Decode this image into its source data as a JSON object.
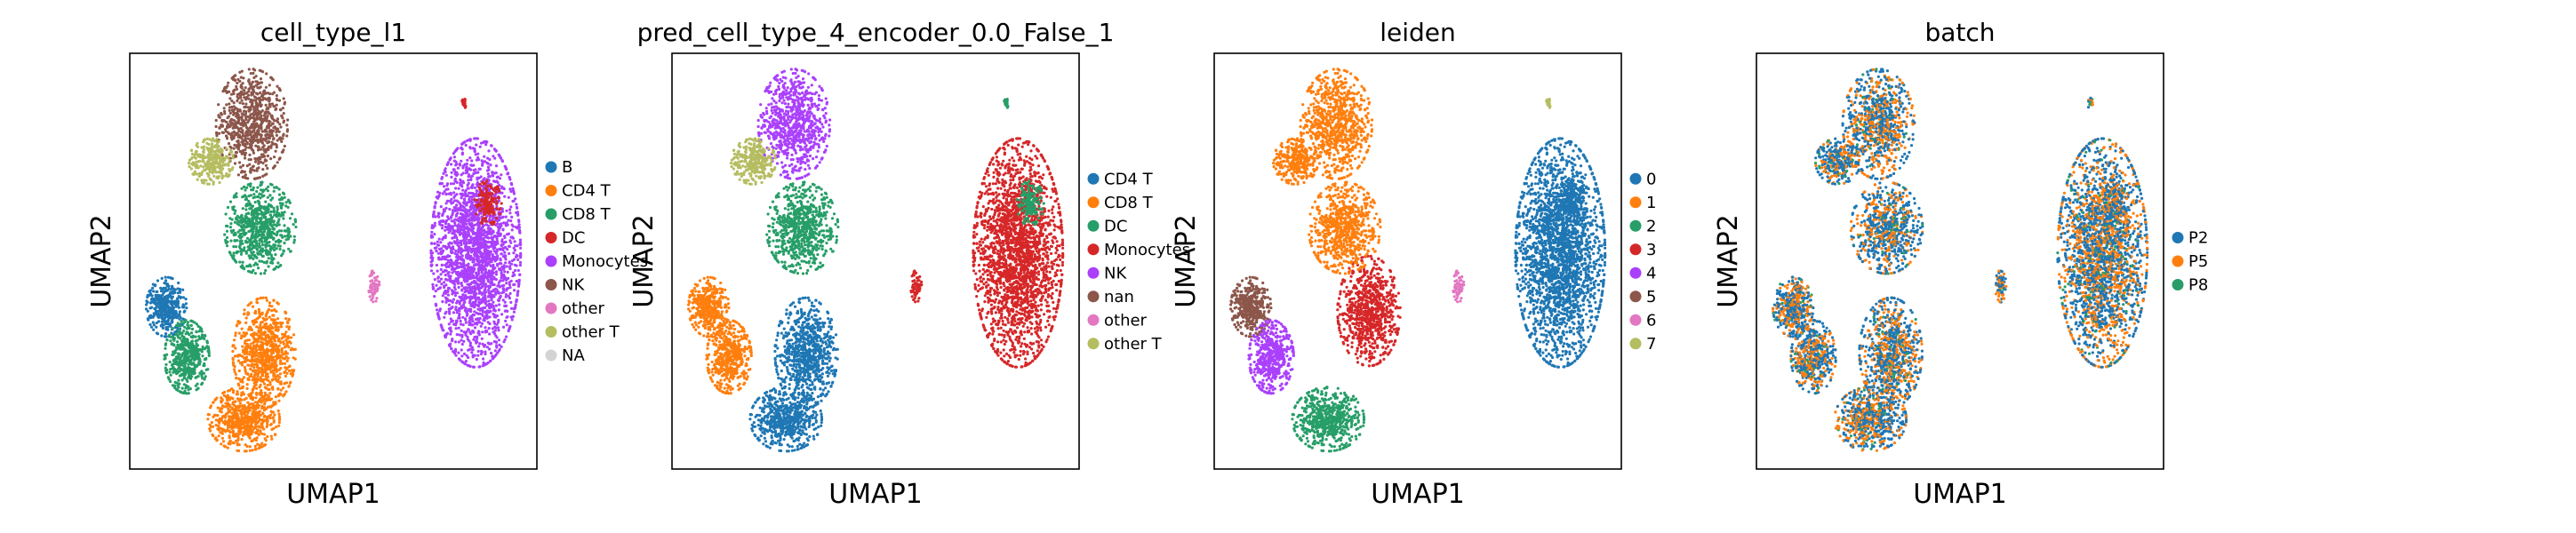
{
  "chart_data": [
    {
      "type": "scatter",
      "title": "cell_type_l1",
      "xlabel": "UMAP1",
      "ylabel": "UMAP2",
      "legend": [
        {
          "name": "B",
          "color": "#1f77b4"
        },
        {
          "name": "CD4 T",
          "color": "#ff7f0e"
        },
        {
          "name": "CD8 T",
          "color": "#279e68"
        },
        {
          "name": "DC",
          "color": "#d62728"
        },
        {
          "name": "Monocytes",
          "color": "#aa40fc"
        },
        {
          "name": "NK",
          "color": "#8c564b"
        },
        {
          "name": "other",
          "color": "#e377c2"
        },
        {
          "name": "other T",
          "color": "#b5bd61"
        },
        {
          "name": "NA",
          "color": "#d3d3d3"
        }
      ],
      "clusters": [
        {
          "cat": "B",
          "cx": 0.09,
          "cy": 0.61,
          "rx": 0.045,
          "ry": 0.065,
          "n": 420
        },
        {
          "cat": "CD4 T",
          "cx": 0.33,
          "cy": 0.72,
          "rx": 0.07,
          "ry": 0.12,
          "n": 800
        },
        {
          "cat": "CD4 T",
          "cx": 0.28,
          "cy": 0.88,
          "rx": 0.08,
          "ry": 0.07,
          "n": 600
        },
        {
          "cat": "CD8 T",
          "cx": 0.32,
          "cy": 0.42,
          "rx": 0.08,
          "ry": 0.1,
          "n": 700
        },
        {
          "cat": "CD8 T",
          "cx": 0.14,
          "cy": 0.73,
          "rx": 0.05,
          "ry": 0.08,
          "n": 500
        },
        {
          "cat": "NK",
          "cx": 0.3,
          "cy": 0.17,
          "rx": 0.08,
          "ry": 0.12,
          "n": 800
        },
        {
          "cat": "other T",
          "cx": 0.2,
          "cy": 0.26,
          "rx": 0.05,
          "ry": 0.05,
          "n": 300
        },
        {
          "cat": "Monocytes",
          "cx": 0.85,
          "cy": 0.48,
          "rx": 0.1,
          "ry": 0.25,
          "n": 2400
        },
        {
          "cat": "DC",
          "cx": 0.88,
          "cy": 0.36,
          "rx": 0.03,
          "ry": 0.05,
          "n": 150
        },
        {
          "cat": "other",
          "cx": 0.6,
          "cy": 0.56,
          "rx": 0.012,
          "ry": 0.035,
          "n": 70
        },
        {
          "cat": "DC",
          "cx": 0.82,
          "cy": 0.12,
          "rx": 0.006,
          "ry": 0.012,
          "n": 20
        }
      ]
    },
    {
      "type": "scatter",
      "title": "pred_cell_type_4_encoder_0.0_False_1",
      "xlabel": "UMAP1",
      "ylabel": "UMAP2",
      "legend": [
        {
          "name": "CD4 T",
          "color": "#1f77b4"
        },
        {
          "name": "CD8 T",
          "color": "#ff7f0e"
        },
        {
          "name": "DC",
          "color": "#279e68"
        },
        {
          "name": "Monocytes",
          "color": "#d62728"
        },
        {
          "name": "NK",
          "color": "#aa40fc"
        },
        {
          "name": "nan",
          "color": "#8c564b"
        },
        {
          "name": "other",
          "color": "#e377c2"
        },
        {
          "name": "other T",
          "color": "#b5bd61"
        }
      ],
      "clusters": [
        {
          "cat": "CD8 T",
          "cx": 0.09,
          "cy": 0.61,
          "rx": 0.045,
          "ry": 0.065,
          "n": 420
        },
        {
          "cat": "CD4 T",
          "cx": 0.33,
          "cy": 0.72,
          "rx": 0.07,
          "ry": 0.12,
          "n": 800
        },
        {
          "cat": "CD4 T",
          "cx": 0.28,
          "cy": 0.88,
          "rx": 0.08,
          "ry": 0.07,
          "n": 600
        },
        {
          "cat": "DC",
          "cx": 0.32,
          "cy": 0.42,
          "rx": 0.08,
          "ry": 0.1,
          "n": 700
        },
        {
          "cat": "CD8 T",
          "cx": 0.14,
          "cy": 0.73,
          "rx": 0.05,
          "ry": 0.08,
          "n": 500
        },
        {
          "cat": "NK",
          "cx": 0.3,
          "cy": 0.17,
          "rx": 0.08,
          "ry": 0.12,
          "n": 800
        },
        {
          "cat": "other T",
          "cx": 0.2,
          "cy": 0.26,
          "rx": 0.05,
          "ry": 0.05,
          "n": 300
        },
        {
          "cat": "Monocytes",
          "cx": 0.85,
          "cy": 0.48,
          "rx": 0.1,
          "ry": 0.25,
          "n": 2400
        },
        {
          "cat": "DC",
          "cx": 0.88,
          "cy": 0.36,
          "rx": 0.03,
          "ry": 0.05,
          "n": 150
        },
        {
          "cat": "Monocytes",
          "cx": 0.6,
          "cy": 0.56,
          "rx": 0.012,
          "ry": 0.035,
          "n": 70
        },
        {
          "cat": "DC",
          "cx": 0.82,
          "cy": 0.12,
          "rx": 0.006,
          "ry": 0.012,
          "n": 20
        }
      ]
    },
    {
      "type": "scatter",
      "title": "leiden",
      "xlabel": "UMAP1",
      "ylabel": "UMAP2",
      "legend": [
        {
          "name": "0",
          "color": "#1f77b4"
        },
        {
          "name": "1",
          "color": "#ff7f0e"
        },
        {
          "name": "2",
          "color": "#279e68"
        },
        {
          "name": "3",
          "color": "#d62728"
        },
        {
          "name": "4",
          "color": "#aa40fc"
        },
        {
          "name": "5",
          "color": "#8c564b"
        },
        {
          "name": "6",
          "color": "#e377c2"
        },
        {
          "name": "7",
          "color": "#b5bd61"
        }
      ],
      "clusters": [
        {
          "cat": "5",
          "cx": 0.09,
          "cy": 0.61,
          "rx": 0.045,
          "ry": 0.065,
          "n": 420
        },
        {
          "cat": "3",
          "cx": 0.38,
          "cy": 0.62,
          "rx": 0.07,
          "ry": 0.12,
          "n": 800
        },
        {
          "cat": "2",
          "cx": 0.28,
          "cy": 0.88,
          "rx": 0.08,
          "ry": 0.07,
          "n": 600
        },
        {
          "cat": "1",
          "cx": 0.32,
          "cy": 0.42,
          "rx": 0.08,
          "ry": 0.1,
          "n": 700
        },
        {
          "cat": "4",
          "cx": 0.14,
          "cy": 0.73,
          "rx": 0.05,
          "ry": 0.08,
          "n": 500
        },
        {
          "cat": "1",
          "cx": 0.3,
          "cy": 0.17,
          "rx": 0.08,
          "ry": 0.12,
          "n": 800
        },
        {
          "cat": "1",
          "cx": 0.2,
          "cy": 0.26,
          "rx": 0.05,
          "ry": 0.05,
          "n": 300
        },
        {
          "cat": "0",
          "cx": 0.85,
          "cy": 0.48,
          "rx": 0.1,
          "ry": 0.25,
          "n": 2400
        },
        {
          "cat": "0",
          "cx": 0.88,
          "cy": 0.36,
          "rx": 0.03,
          "ry": 0.05,
          "n": 150
        },
        {
          "cat": "6",
          "cx": 0.6,
          "cy": 0.56,
          "rx": 0.012,
          "ry": 0.035,
          "n": 70
        },
        {
          "cat": "7",
          "cx": 0.82,
          "cy": 0.12,
          "rx": 0.006,
          "ry": 0.012,
          "n": 20
        }
      ]
    },
    {
      "type": "scatter",
      "title": "batch",
      "xlabel": "UMAP1",
      "ylabel": "UMAP2",
      "legend": [
        {
          "name": "P2",
          "color": "#1f77b4"
        },
        {
          "name": "P5",
          "color": "#ff7f0e"
        },
        {
          "name": "P8",
          "color": "#279e68"
        }
      ],
      "clusters": [
        {
          "cat": "P2",
          "cx": 0.09,
          "cy": 0.61,
          "rx": 0.045,
          "ry": 0.065,
          "n": 420
        },
        {
          "cat": "P2",
          "cx": 0.33,
          "cy": 0.72,
          "rx": 0.07,
          "ry": 0.12,
          "n": 800
        },
        {
          "cat": "P2",
          "cx": 0.28,
          "cy": 0.88,
          "rx": 0.08,
          "ry": 0.07,
          "n": 600
        },
        {
          "cat": "P5",
          "cx": 0.32,
          "cy": 0.42,
          "rx": 0.08,
          "ry": 0.1,
          "n": 700
        },
        {
          "cat": "P2",
          "cx": 0.14,
          "cy": 0.73,
          "rx": 0.05,
          "ry": 0.08,
          "n": 500
        },
        {
          "cat": "P2",
          "cx": 0.3,
          "cy": 0.17,
          "rx": 0.08,
          "ry": 0.12,
          "n": 800
        },
        {
          "cat": "P5",
          "cx": 0.2,
          "cy": 0.26,
          "rx": 0.05,
          "ry": 0.05,
          "n": 300
        },
        {
          "cat": "P5",
          "cx": 0.85,
          "cy": 0.48,
          "rx": 0.1,
          "ry": 0.25,
          "n": 2400
        },
        {
          "cat": "P2",
          "cx": 0.88,
          "cy": 0.36,
          "rx": 0.03,
          "ry": 0.05,
          "n": 150
        },
        {
          "cat": "P2",
          "cx": 0.6,
          "cy": 0.56,
          "rx": 0.012,
          "ry": 0.035,
          "n": 70
        },
        {
          "cat": "P2",
          "cx": 0.82,
          "cy": 0.12,
          "rx": 0.006,
          "ry": 0.012,
          "n": 20
        }
      ],
      "mix": {
        "P2": 0.55,
        "P5": 0.4,
        "P8": 0.05
      }
    }
  ]
}
